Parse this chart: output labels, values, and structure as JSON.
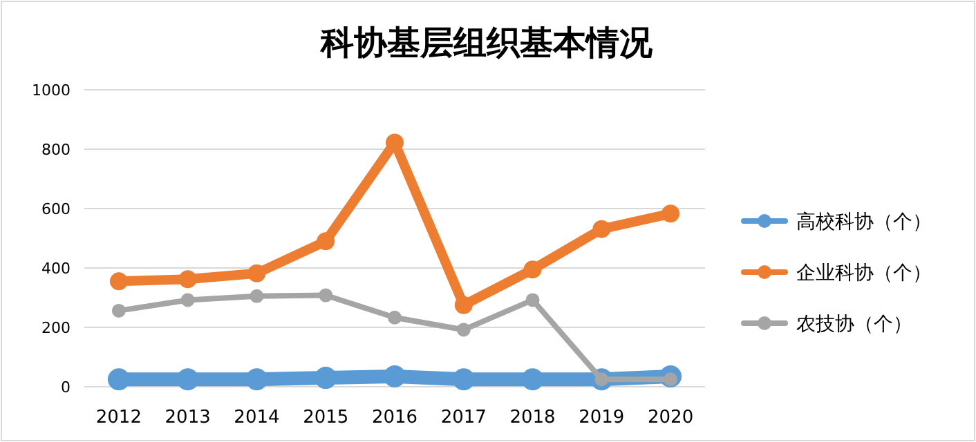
{
  "chart_data": {
    "type": "line",
    "title": "科协基层组织基本情况",
    "categories": [
      "2012",
      "2013",
      "2014",
      "2015",
      "2016",
      "2017",
      "2018",
      "2019",
      "2020"
    ],
    "series": [
      {
        "name": "高校科协（个）",
        "color": "#5b9bd5",
        "values": [
          25,
          25,
          25,
          30,
          35,
          25,
          25,
          25,
          35
        ]
      },
      {
        "name": "企业科协（个）",
        "color": "#ed7d31",
        "values": [
          355,
          362,
          382,
          490,
          822,
          275,
          395,
          531,
          583
        ]
      },
      {
        "name": "农技协（个）",
        "color": "#a5a5a5",
        "values": [
          256,
          292,
          305,
          308,
          233,
          192,
          292,
          25,
          25
        ]
      }
    ],
    "ylim": [
      0,
      1000
    ],
    "yticks": [
      0,
      200,
      400,
      600,
      800,
      1000
    ],
    "grid": "y",
    "legend": "right",
    "marker": "circle"
  }
}
